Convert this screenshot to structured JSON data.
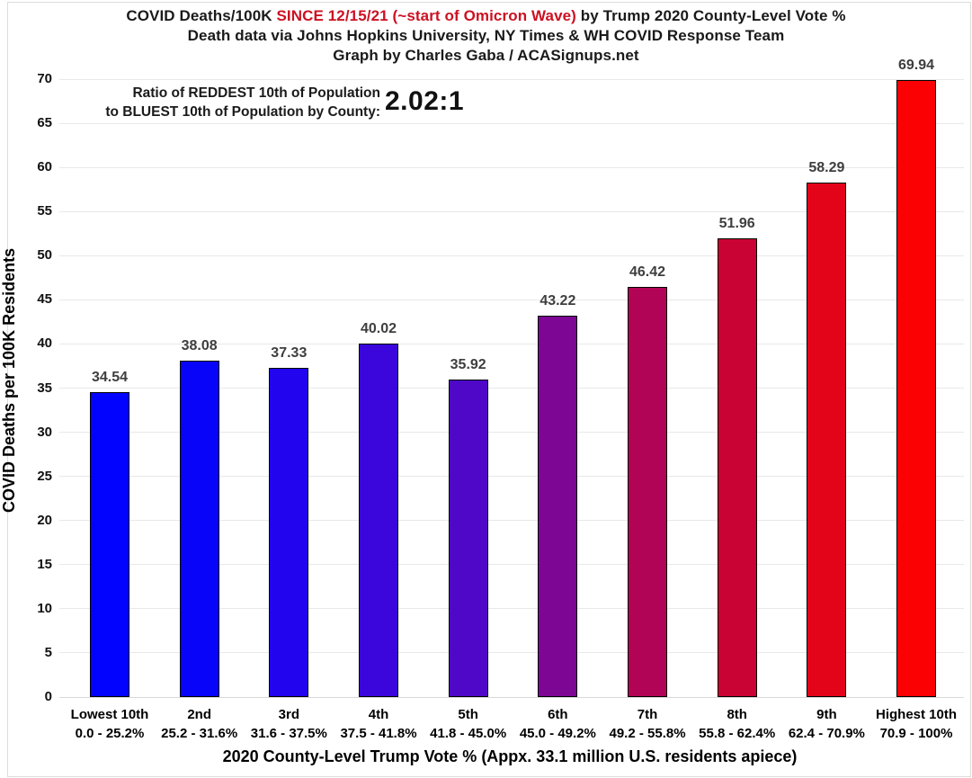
{
  "header": {
    "title_prefix": "COVID Deaths/100K ",
    "title_highlight": "SINCE 12/15/21 (~start of Omicron Wave)",
    "title_suffix": " by Trump 2020 County-Level Vote %",
    "subtitle": "Death data via Johns Hopkins University, NY Times & WH COVID Response Team",
    "credit": "Graph by Charles Gaba / ACASignups.net",
    "highlight_color": "#cc1122"
  },
  "annotation": {
    "line1": "Ratio of REDDEST 10th of Population",
    "line2": "to BLUEST 10th of Population by County:",
    "ratio_value": "2.02:1"
  },
  "chart_data": {
    "type": "bar",
    "title": "COVID Deaths/100K SINCE 12/15/21 (~start of Omicron Wave) by Trump 2020 County-Level Vote %",
    "xlabel": "2020 County-Level Trump Vote % (Appx. 33.1 million U.S. residents apiece)",
    "ylabel": "COVID Deaths per 100K Residents",
    "ylim": [
      0,
      70
    ],
    "ytick_step": 5,
    "grid": "horizontal",
    "legend": "none",
    "categories": [
      "Lowest 10th",
      "2nd",
      "3rd",
      "4th",
      "5th",
      "6th",
      "7th",
      "8th",
      "9th",
      "Highest 10th"
    ],
    "category_ranges": [
      "0.0 - 25.2%",
      "25.2 - 31.6%",
      "31.6 - 37.5%",
      "37.5 - 41.8%",
      "41.8 - 45.0%",
      "45.0 - 49.2%",
      "49.2 - 55.8%",
      "55.8 - 62.4%",
      "62.4 - 70.9%",
      "70.9 - 100%"
    ],
    "values": [
      34.54,
      38.08,
      37.33,
      40.02,
      35.92,
      43.22,
      46.42,
      51.96,
      58.29,
      69.94
    ],
    "value_labels": [
      "34.54",
      "38.08",
      "37.33",
      "40.02",
      "35.92",
      "43.22",
      "46.42",
      "51.96",
      "58.29",
      "69.94"
    ],
    "bar_colors": [
      "#0203fe",
      "#0803f9",
      "#2204ef",
      "#3b06dc",
      "#4f08c8",
      "#7d0695",
      "#b20456",
      "#c90334",
      "#e4041a",
      "#fb0104"
    ]
  }
}
